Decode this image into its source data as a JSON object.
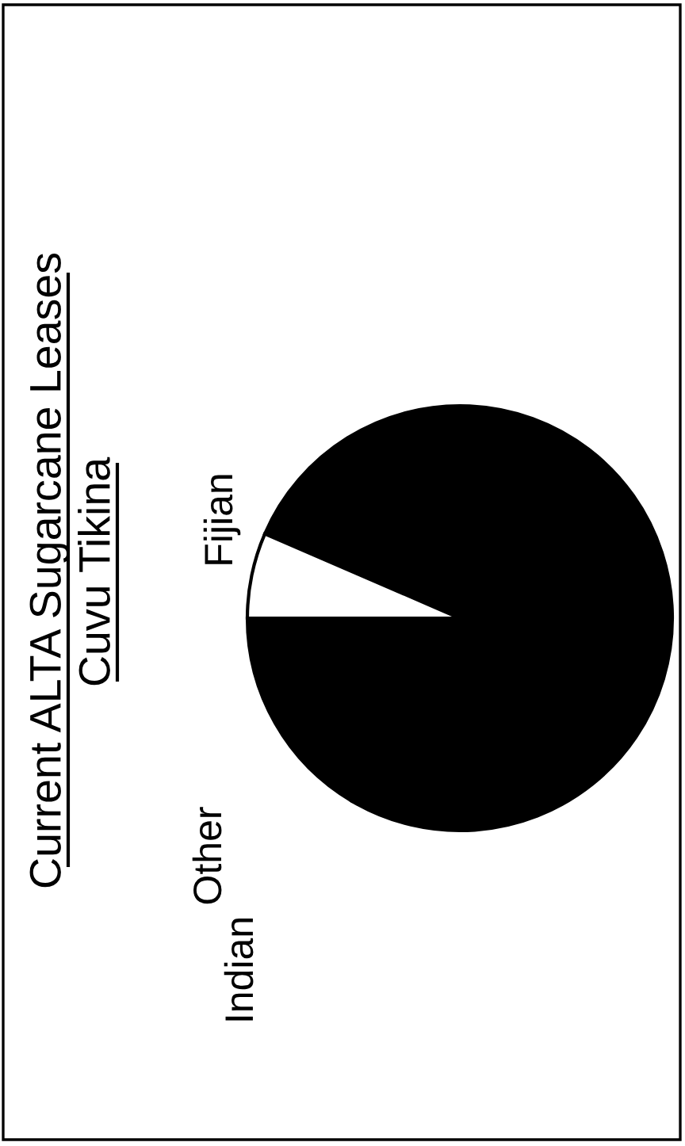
{
  "chart_data": {
    "type": "pie",
    "title": "Current ALTA Sugarcane Leases",
    "subtitle": "Cuvu Tikina",
    "categories": [
      "Indian",
      "Fijian",
      "Other"
    ],
    "values": [
      77,
      6.5,
      16.5
    ],
    "colors": [
      "#000000",
      "#ffffff",
      "#000000"
    ]
  }
}
